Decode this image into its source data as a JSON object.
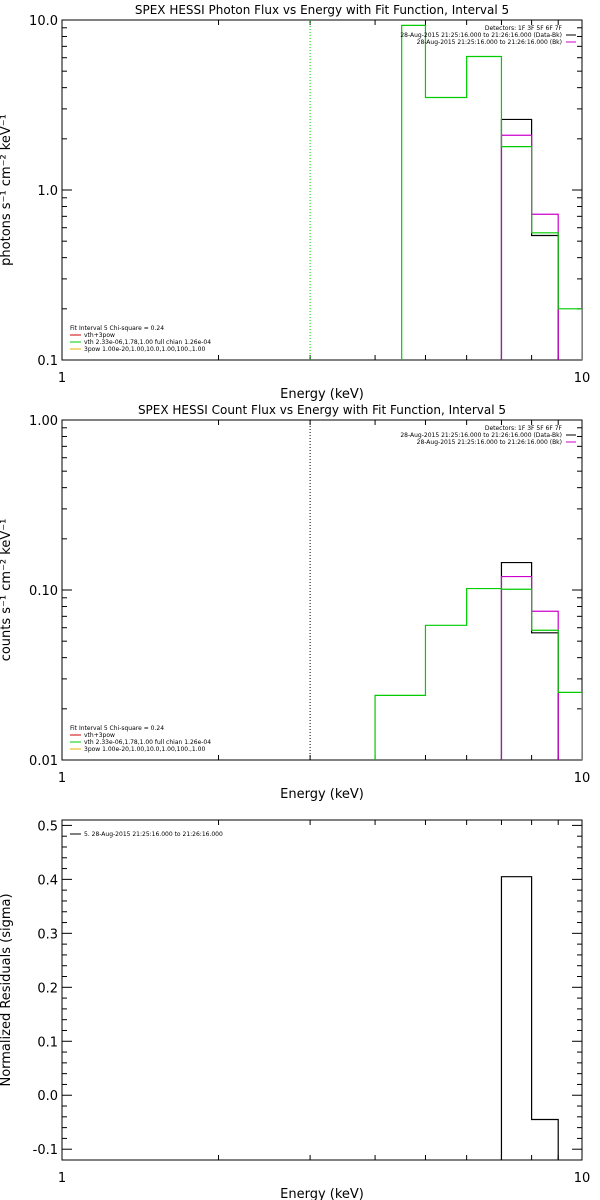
{
  "chart_data": [
    {
      "type": "line",
      "title": "SPEX HESSI Photon Flux vs Energy with Fit Function, Interval 5",
      "xlabel": "Energy (keV)",
      "ylabel": "photons s⁻¹ cm⁻² keV⁻¹",
      "xscale": "log",
      "yscale": "log",
      "xlim": [
        1,
        10
      ],
      "ylim": [
        0.1,
        10
      ],
      "xticks": [
        {
          "v": 1,
          "label": "1"
        },
        {
          "v": 10,
          "label": "10"
        }
      ],
      "yticks": [
        {
          "v": 0.1,
          "label": "0.1"
        },
        {
          "v": 1,
          "label": "1.0"
        },
        {
          "v": 10,
          "label": "10.0"
        }
      ],
      "vline": {
        "x": 3.0,
        "color": "#00cc00",
        "style": "dotted"
      },
      "legend_tr": [
        {
          "text": "Detectors: 1F 3F 5F 6F 7F",
          "color": null
        },
        {
          "text": "28-Aug-2015 21:25:16.000 to 21:26:16.000 (Data-Bk)",
          "color": "#000000"
        },
        {
          "text": "28-Aug-2015 21:25:16.000 to 21:26:16.000 (Bk)",
          "color": "#cc00cc"
        }
      ],
      "legend_bl": [
        {
          "text": "Fit Interval 5   Chi-square = 0.24",
          "color": null
        },
        {
          "text": "vth+3pow",
          "color": "#cc0000"
        },
        {
          "text": "vth 2.33e-06,1.78,1.00  full chian 1.26e-04",
          "color": "#00cc00"
        },
        {
          "text": "3pow 1.00e-20,1.00,10.0,1.00,100.,1.00",
          "color": "#e8b000"
        }
      ],
      "series": [
        {
          "name": "28-Aug-2015 21:25:16.000 to 21:26:16.000 (Data-Bk)",
          "color": "#000000",
          "edges": [
            7.0,
            8.0,
            9.0
          ],
          "values": [
            2.6,
            0.54
          ]
        },
        {
          "name": "28-Aug-2015 21:25:16.000 to 21:26:16.000 (Bk)",
          "color": "#cc00cc",
          "edges": [
            7.0,
            8.0,
            9.0
          ],
          "values": [
            2.1,
            0.72
          ]
        },
        {
          "name": "vth 2.33e-06,1.78,1.00  full chian 1.26e-04",
          "color": "#00cc00",
          "edges": [
            4.5,
            5.0,
            6.0,
            7.0,
            8.0,
            9.0,
            10.0
          ],
          "values": [
            9.3,
            3.5,
            6.1,
            1.8,
            0.56,
            0.2
          ]
        }
      ]
    },
    {
      "type": "line",
      "title": "SPEX HESSI Count Flux vs Energy with Fit Function, Interval 5",
      "xlabel": "Energy (keV)",
      "ylabel": "counts s⁻¹ cm⁻² keV⁻¹",
      "xscale": "log",
      "yscale": "log",
      "xlim": [
        1,
        10
      ],
      "ylim": [
        0.01,
        1
      ],
      "xticks": [
        {
          "v": 1,
          "label": "1"
        },
        {
          "v": 10,
          "label": "10"
        }
      ],
      "yticks": [
        {
          "v": 0.01,
          "label": "0.01"
        },
        {
          "v": 0.1,
          "label": "0.10"
        },
        {
          "v": 1,
          "label": "1.00"
        }
      ],
      "vline": {
        "x": 3.0,
        "color": "#000000",
        "style": "dotted"
      },
      "legend_tr": [
        {
          "text": "Detectors: 1F 3F 5F 6F 7F",
          "color": null
        },
        {
          "text": "28-Aug-2015 21:25:16.000 to 21:26:16.000 (Data-Bk)",
          "color": "#000000"
        },
        {
          "text": "28-Aug-2015 21:25:16.000 to 21:26:16.000 (Bk)",
          "color": "#cc00cc"
        }
      ],
      "legend_bl": [
        {
          "text": "Fit Interval 5   Chi-square = 0.24",
          "color": null
        },
        {
          "text": "vth+3pow",
          "color": "#cc0000"
        },
        {
          "text": "vth 2.33e-06,1.78,1.00  full chian 1.26e-04",
          "color": "#00cc00"
        },
        {
          "text": "3pow 1.00e-20,1.00,10.0,1.00,100.,1.00",
          "color": "#e8b000"
        }
      ],
      "series": [
        {
          "name": "28-Aug-2015 21:25:16.000 to 21:26:16.000 (Data-Bk)",
          "color": "#000000",
          "edges": [
            7.0,
            8.0,
            9.0
          ],
          "values": [
            0.145,
            0.056
          ]
        },
        {
          "name": "28-Aug-2015 21:25:16.000 to 21:26:16.000 (Bk)",
          "color": "#cc00cc",
          "edges": [
            7.0,
            8.0,
            9.0
          ],
          "values": [
            0.12,
            0.075
          ]
        },
        {
          "name": "vth 2.33e-06,1.78,1.00  full chian 1.26e-04",
          "color": "#00cc00",
          "edges": [
            4.0,
            5.0,
            6.0,
            7.0,
            8.0,
            9.0,
            10.0
          ],
          "values": [
            0.024,
            0.062,
            0.102,
            0.101,
            0.058,
            0.025
          ]
        }
      ]
    },
    {
      "type": "line",
      "title": "",
      "xlabel": "Energy (keV)",
      "ylabel": "Normalized Residuals (sigma)",
      "xscale": "log",
      "yscale": "linear",
      "xlim": [
        1,
        10
      ],
      "ylim": [
        -0.12,
        0.51
      ],
      "xticks": [
        {
          "v": 1,
          "label": "1"
        },
        {
          "v": 10,
          "label": "10"
        }
      ],
      "yticks": [
        {
          "v": -0.1,
          "label": "-0.1"
        },
        {
          "v": 0.0,
          "label": "0.0"
        },
        {
          "v": 0.1,
          "label": "0.1"
        },
        {
          "v": 0.2,
          "label": "0.2"
        },
        {
          "v": 0.3,
          "label": "0.3"
        },
        {
          "v": 0.4,
          "label": "0.4"
        },
        {
          "v": 0.5,
          "label": "0.5"
        }
      ],
      "legend_tl": [
        {
          "text": "5. 28-Aug-2015 21:25:16.000 to 21:26:16.000",
          "color": "#000000"
        }
      ],
      "series": [
        {
          "name": "5. 28-Aug-2015 21:25:16.000 to 21:26:16.000",
          "color": "#000000",
          "edges": [
            7.0,
            8.0,
            9.0
          ],
          "values": [
            0.405,
            -0.045
          ],
          "fill_from": -0.12
        }
      ]
    }
  ]
}
